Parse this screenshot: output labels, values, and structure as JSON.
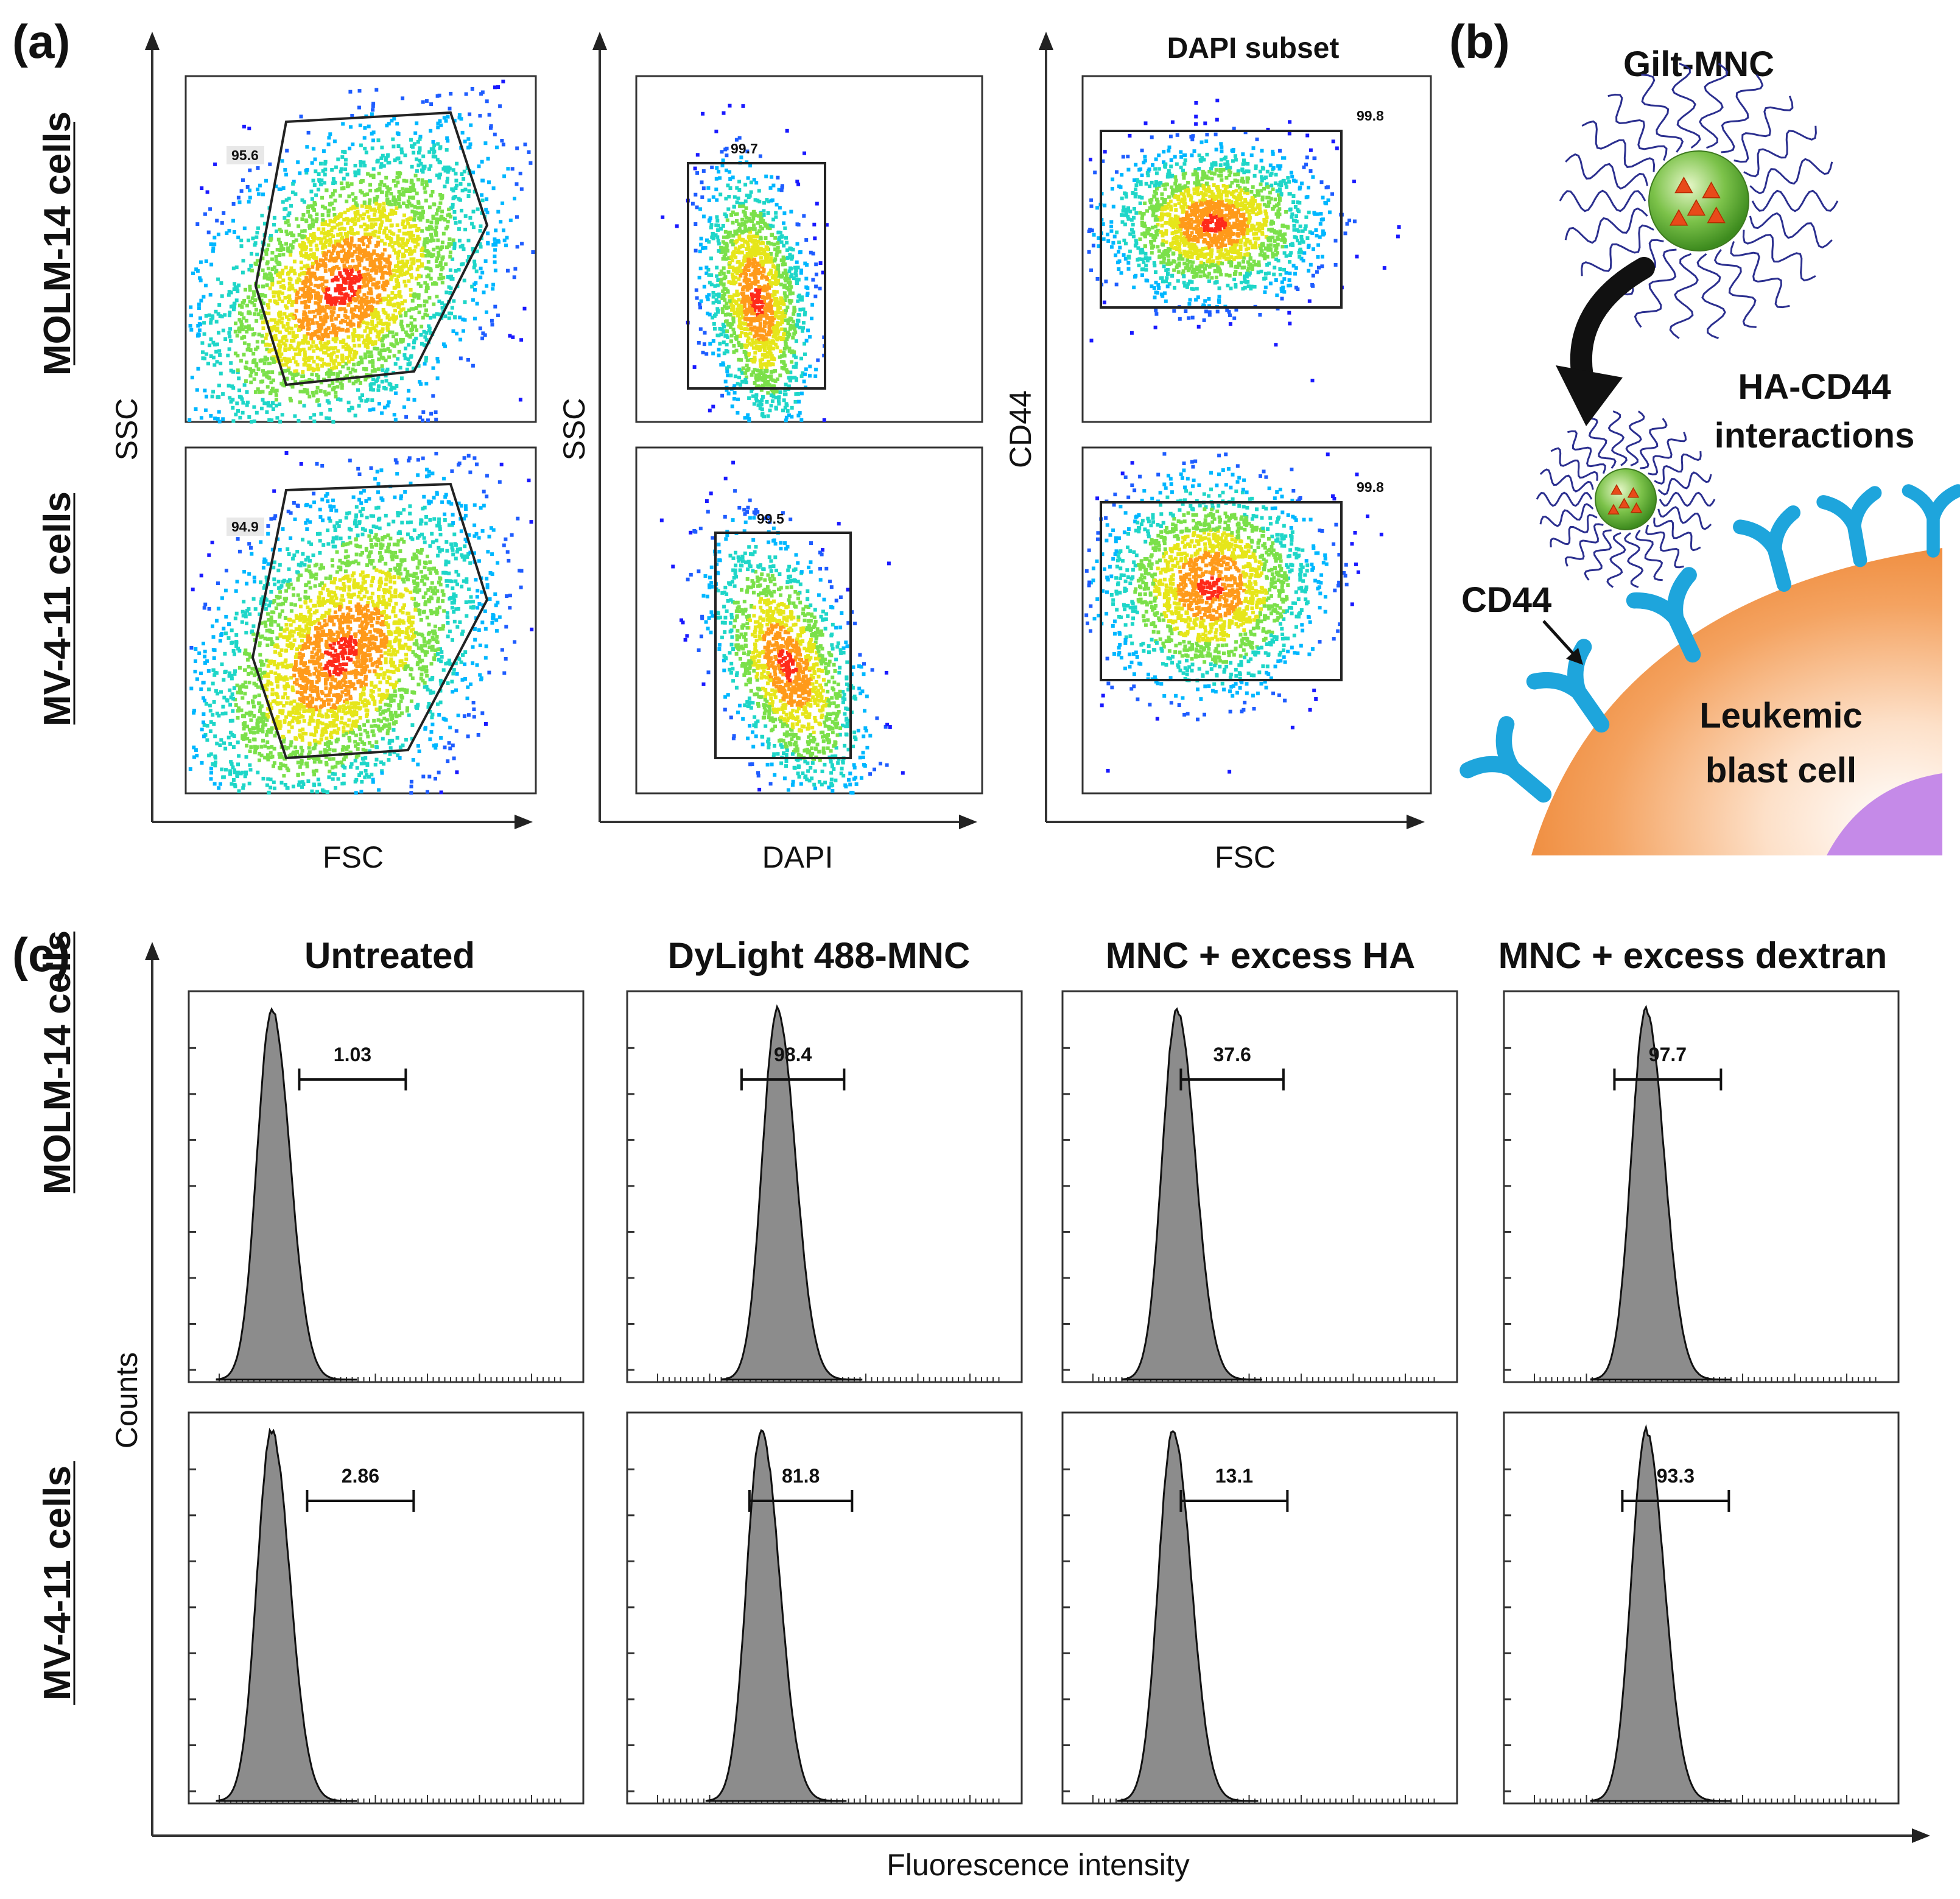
{
  "panel_a": {
    "letter": "(a)",
    "row_labels": [
      "MOLM-14 cells",
      "MV-4-11 cells"
    ],
    "col1": {
      "x_label": "FSC",
      "y_label": "SSC",
      "gates": [
        "95.6",
        "94.9"
      ]
    },
    "col2": {
      "x_label": "DAPI",
      "y_label": "SSC",
      "gates": [
        "99.7",
        "99.5"
      ]
    },
    "col3": {
      "title": "DAPI subset",
      "x_label": "FSC",
      "y_label": "CD44",
      "gates": [
        "99.8",
        "99.8"
      ]
    }
  },
  "panel_b": {
    "letter": "(b)",
    "nanocarrier_label": "Gilt-MNC",
    "interaction_label_line1": "HA-CD44",
    "interaction_label_line2": "interactions",
    "receptor_label": "CD44",
    "cell_label_line1": "Leukemic",
    "cell_label_line2": "blast cell"
  },
  "panel_c": {
    "letter": "(c)",
    "row_labels": [
      "MOLM-14 cells",
      "MV-4-11 cells"
    ],
    "y_label": "Counts",
    "x_label": "Fluorescence intensity",
    "columns": [
      "Untreated",
      "DyLight 488-MNC",
      "MNC + excess HA",
      "MNC + excess dextran"
    ]
  },
  "chart_data": [
    {
      "type": "scatter",
      "title": "Panel (a) flow cytometry gating",
      "plots": [
        {
          "row": "MOLM-14 cells",
          "x": "FSC",
          "y": "SSC",
          "gate_percent": 95.6
        },
        {
          "row": "MV-4-11 cells",
          "x": "FSC",
          "y": "SSC",
          "gate_percent": 94.9
        },
        {
          "row": "MOLM-14 cells",
          "x": "DAPI",
          "y": "SSC",
          "gate_percent": 99.7
        },
        {
          "row": "MV-4-11 cells",
          "x": "DAPI",
          "y": "SSC",
          "gate_percent": 99.5
        },
        {
          "row": "MOLM-14 cells",
          "x": "FSC",
          "y": "CD44",
          "subset": "DAPI subset",
          "gate_percent": 99.8
        },
        {
          "row": "MV-4-11 cells",
          "x": "FSC",
          "y": "CD44",
          "subset": "DAPI subset",
          "gate_percent": 99.8
        }
      ]
    },
    {
      "type": "area",
      "title": "Panel (c) histograms",
      "xlabel": "Fluorescence intensity",
      "ylabel": "Counts",
      "categories": [
        "Untreated",
        "DyLight 488-MNC",
        "MNC + excess HA",
        "MNC + excess dextran"
      ],
      "series": [
        {
          "name": "MOLM-14 cells",
          "values": [
            1.03,
            98.4,
            37.6,
            97.7
          ]
        },
        {
          "name": "MV-4-11 cells",
          "values": [
            2.86,
            81.8,
            13.1,
            93.3
          ]
        }
      ]
    }
  ]
}
